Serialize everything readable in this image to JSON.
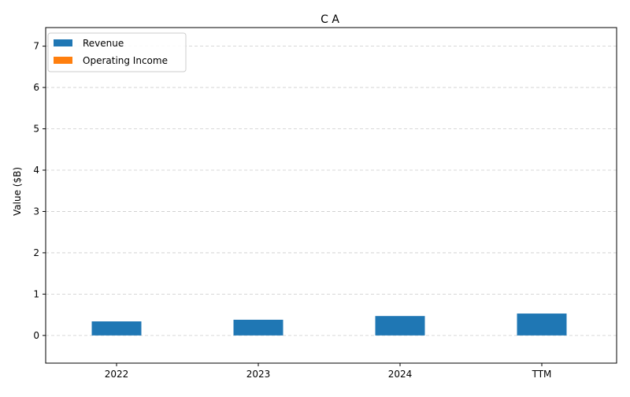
{
  "chart_data": {
    "type": "bar",
    "title": "C A",
    "xlabel": "",
    "ylabel": "Value ($B)",
    "categories": [
      "2022",
      "2023",
      "2024",
      "TTM"
    ],
    "series": [
      {
        "name": "Revenue",
        "color": "#1f77b4",
        "values": [
          0.34,
          0.38,
          0.47,
          0.53
        ]
      },
      {
        "name": "Operating Income",
        "color": "#ff7f0e",
        "values": [
          0.0,
          0.0,
          0.0,
          0.0
        ]
      }
    ],
    "ylim": [
      -0.67,
      7.45
    ],
    "yticks": [
      "0",
      "1",
      "2",
      "3",
      "4",
      "5",
      "6",
      "7"
    ],
    "grid": "y-dashed",
    "legend_position": "top-left"
  }
}
